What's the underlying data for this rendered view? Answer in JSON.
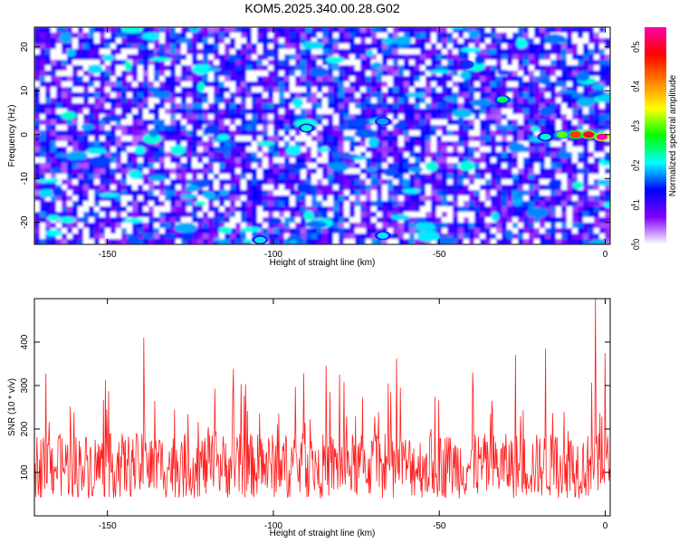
{
  "title": "KOM5.2025.340.00.28.G02",
  "chart_data": [
    {
      "type": "heatmap",
      "title": "KOM5.2025.340.00.28.G02",
      "xlabel": "Height of straight line (km)",
      "ylabel": "Frequency (Hz)",
      "xlim": [
        -172,
        1.5
      ],
      "ylim": [
        -25,
        24.5
      ],
      "xticks": [
        -150,
        -100,
        -50,
        0
      ],
      "yticks": [
        -20,
        -10,
        0,
        10,
        20
      ],
      "colorbar": {
        "label": "Normalized spectral amplitude",
        "range": [
          0.0,
          0.55
        ],
        "ticks": [
          0.0,
          0.1,
          0.2,
          0.3,
          0.4,
          0.5
        ],
        "colors": [
          "#ffffff",
          "#8000ff",
          "#0000ff",
          "#00ffff",
          "#00ff00",
          "#ffff00",
          "#ff8000",
          "#ff0000",
          "#ff00aa"
        ]
      },
      "features": [
        {
          "x": -1,
          "y": -0.5,
          "value": 0.55
        },
        {
          "x": -5,
          "y": 0,
          "value": 0.5
        },
        {
          "x": -9,
          "y": 0,
          "value": 0.45
        },
        {
          "x": -13,
          "y": 0,
          "value": 0.3
        },
        {
          "x": -18,
          "y": -0.5,
          "value": 0.22
        },
        {
          "x": -31,
          "y": 8,
          "value": 0.25
        },
        {
          "x": -90,
          "y": 1.5,
          "value": 0.22
        },
        {
          "x": -67,
          "y": 3,
          "value": 0.18
        },
        {
          "x": -42,
          "y": 16,
          "value": 0.15
        },
        {
          "x": -67,
          "y": -23,
          "value": 0.2
        },
        {
          "x": -104,
          "y": -24,
          "value": 0.2
        }
      ]
    },
    {
      "type": "line",
      "title": "",
      "xlabel": "Height of straight line (km)",
      "ylabel": "SNR (10 * v/v)",
      "xlim": [
        -172,
        1.5
      ],
      "ylim": [
        0,
        500
      ],
      "xticks": [
        -150,
        -100,
        -50,
        0
      ],
      "yticks": [
        100,
        200,
        300,
        400
      ],
      "series": [
        {
          "name": "SNR",
          "color": "#ff2020",
          "baseline_mean": 115,
          "typical_peak": 300,
          "peaks": [
            {
              "x": -139,
              "y": 410
            },
            {
              "x": -80,
              "y": 325
            },
            {
              "x": -40,
              "y": 330
            },
            {
              "x": -27,
              "y": 370
            },
            {
              "x": -18,
              "y": 385
            },
            {
              "x": -3,
              "y": 500
            },
            {
              "x": 0,
              "y": 375
            }
          ]
        }
      ]
    }
  ]
}
